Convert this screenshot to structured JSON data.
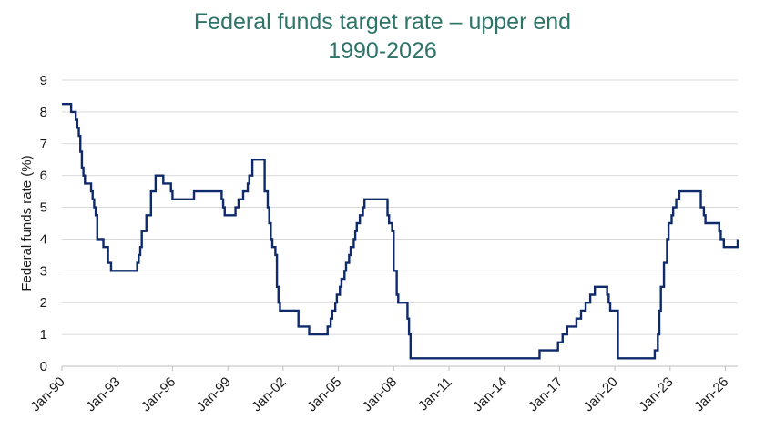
{
  "chart_data": {
    "type": "line",
    "title": "Federal funds target rate – upper end",
    "subtitle": "1990-2026",
    "xlabel": "",
    "ylabel": "Federal funds rate (%)",
    "ylim": [
      0,
      9
    ],
    "yticks": [
      "0",
      "1",
      "2",
      "3",
      "4",
      "5",
      "6",
      "7",
      "8",
      "9"
    ],
    "xlim": [
      "1990-01",
      "2026-09"
    ],
    "xticks": [
      "Jan-90",
      "Jan-93",
      "Jan-96",
      "Jan-99",
      "Jan-02",
      "Jan-05",
      "Jan-08",
      "Jan-11",
      "Jan-14",
      "Jan-17",
      "Jan-20",
      "Jan-23",
      "Jan-26"
    ],
    "grid": true,
    "line_color": "#0F2A6B",
    "grid_color": "#d9d9d9",
    "title_color": "#2E7468",
    "series": [
      {
        "step": true,
        "points": [
          [
            "1990-01",
            8.25
          ],
          [
            "1990-07",
            8.0
          ],
          [
            "1990-10",
            7.75
          ],
          [
            "1990-11",
            7.5
          ],
          [
            "1990-12",
            7.25
          ],
          [
            "1991-01",
            6.75
          ],
          [
            "1991-02",
            6.25
          ],
          [
            "1991-03",
            6.0
          ],
          [
            "1991-04",
            5.75
          ],
          [
            "1991-08",
            5.5
          ],
          [
            "1991-09",
            5.25
          ],
          [
            "1991-10",
            5.0
          ],
          [
            "1991-11",
            4.75
          ],
          [
            "1991-12",
            4.0
          ],
          [
            "1992-04",
            3.75
          ],
          [
            "1992-07",
            3.25
          ],
          [
            "1992-09",
            3.0
          ],
          [
            "1994-02",
            3.25
          ],
          [
            "1994-03",
            3.5
          ],
          [
            "1994-04",
            3.75
          ],
          [
            "1994-05",
            4.25
          ],
          [
            "1994-08",
            4.75
          ],
          [
            "1994-11",
            5.5
          ],
          [
            "1995-02",
            6.0
          ],
          [
            "1995-07",
            5.75
          ],
          [
            "1995-12",
            5.5
          ],
          [
            "1996-01",
            5.25
          ],
          [
            "1997-03",
            5.5
          ],
          [
            "1998-09",
            5.25
          ],
          [
            "1998-10",
            5.0
          ],
          [
            "1998-11",
            4.75
          ],
          [
            "1999-06",
            5.0
          ],
          [
            "1999-08",
            5.25
          ],
          [
            "1999-11",
            5.5
          ],
          [
            "2000-02",
            5.75
          ],
          [
            "2000-03",
            6.0
          ],
          [
            "2000-05",
            6.5
          ],
          [
            "2001-01",
            5.5
          ],
          [
            "2001-03",
            5.0
          ],
          [
            "2001-04",
            4.5
          ],
          [
            "2001-05",
            4.0
          ],
          [
            "2001-06",
            3.75
          ],
          [
            "2001-08",
            3.5
          ],
          [
            "2001-09",
            2.5
          ],
          [
            "2001-10",
            2.0
          ],
          [
            "2001-11",
            1.75
          ],
          [
            "2002-11",
            1.25
          ],
          [
            "2003-06",
            1.0
          ],
          [
            "2004-06",
            1.25
          ],
          [
            "2004-08",
            1.5
          ],
          [
            "2004-09",
            1.75
          ],
          [
            "2004-11",
            2.0
          ],
          [
            "2004-12",
            2.25
          ],
          [
            "2005-02",
            2.5
          ],
          [
            "2005-03",
            2.75
          ],
          [
            "2005-05",
            3.0
          ],
          [
            "2005-06",
            3.25
          ],
          [
            "2005-08",
            3.5
          ],
          [
            "2005-09",
            3.75
          ],
          [
            "2005-11",
            4.0
          ],
          [
            "2005-12",
            4.25
          ],
          [
            "2006-01",
            4.5
          ],
          [
            "2006-03",
            4.75
          ],
          [
            "2006-05",
            5.0
          ],
          [
            "2006-06",
            5.25
          ],
          [
            "2007-09",
            4.75
          ],
          [
            "2007-10",
            4.5
          ],
          [
            "2007-12",
            4.25
          ],
          [
            "2008-01",
            3.0
          ],
          [
            "2008-03",
            2.25
          ],
          [
            "2008-04",
            2.0
          ],
          [
            "2008-10",
            1.5
          ],
          [
            "2008-11",
            1.0
          ],
          [
            "2008-12",
            0.25
          ],
          [
            "2015-12",
            0.5
          ],
          [
            "2016-12",
            0.75
          ],
          [
            "2017-03",
            1.0
          ],
          [
            "2017-06",
            1.25
          ],
          [
            "2017-12",
            1.5
          ],
          [
            "2018-03",
            1.75
          ],
          [
            "2018-06",
            2.0
          ],
          [
            "2018-09",
            2.25
          ],
          [
            "2018-12",
            2.5
          ],
          [
            "2019-08",
            2.25
          ],
          [
            "2019-09",
            2.0
          ],
          [
            "2019-10",
            1.75
          ],
          [
            "2020-03",
            0.25
          ],
          [
            "2022-03",
            0.5
          ],
          [
            "2022-05",
            1.0
          ],
          [
            "2022-06",
            1.75
          ],
          [
            "2022-07",
            2.5
          ],
          [
            "2022-09",
            3.25
          ],
          [
            "2022-11",
            4.0
          ],
          [
            "2022-12",
            4.5
          ],
          [
            "2023-02",
            4.75
          ],
          [
            "2023-03",
            5.0
          ],
          [
            "2023-05",
            5.25
          ],
          [
            "2023-07",
            5.5
          ],
          [
            "2024-09",
            5.0
          ],
          [
            "2024-11",
            4.75
          ],
          [
            "2024-12",
            4.5
          ],
          [
            "2025-09",
            4.25
          ],
          [
            "2025-10",
            4.0
          ],
          [
            "2025-12",
            3.75
          ],
          [
            "2026-09",
            4.0
          ]
        ]
      }
    ]
  }
}
